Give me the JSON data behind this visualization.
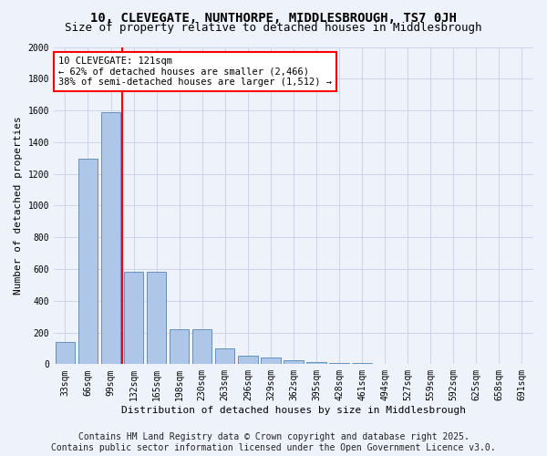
{
  "title_line1": "10, CLEVEGATE, NUNTHORPE, MIDDLESBROUGH, TS7 0JH",
  "title_line2": "Size of property relative to detached houses in Middlesbrough",
  "xlabel": "Distribution of detached houses by size in Middlesbrough",
  "ylabel": "Number of detached properties",
  "categories": [
    "33sqm",
    "66sqm",
    "99sqm",
    "132sqm",
    "165sqm",
    "198sqm",
    "230sqm",
    "263sqm",
    "296sqm",
    "329sqm",
    "362sqm",
    "395sqm",
    "428sqm",
    "461sqm",
    "494sqm",
    "527sqm",
    "559sqm",
    "592sqm",
    "625sqm",
    "658sqm",
    "691sqm"
  ],
  "values": [
    140,
    1295,
    1590,
    580,
    580,
    220,
    220,
    100,
    55,
    45,
    25,
    15,
    10,
    5,
    2,
    1,
    1,
    0,
    0,
    0,
    0
  ],
  "bar_color": "#aec6e8",
  "bar_edge_color": "#5585b5",
  "vline_color": "red",
  "annotation_line1": "10 CLEVEGATE: 121sqm",
  "annotation_line2": "← 62% of detached houses are smaller (2,466)",
  "annotation_line3": "38% of semi-detached houses are larger (1,512) →",
  "annotation_box_color": "white",
  "annotation_box_edgecolor": "red",
  "ylim": [
    0,
    2000
  ],
  "yticks": [
    0,
    200,
    400,
    600,
    800,
    1000,
    1200,
    1400,
    1600,
    1800,
    2000
  ],
  "background_color": "#eef2fb",
  "grid_color": "#c8d0e8",
  "footer_line1": "Contains HM Land Registry data © Crown copyright and database right 2025.",
  "footer_line2": "Contains public sector information licensed under the Open Government Licence v3.0.",
  "title_fontsize": 10,
  "subtitle_fontsize": 9,
  "footer_fontsize": 7,
  "ylabel_fontsize": 8,
  "xlabel_fontsize": 8,
  "tick_fontsize": 7,
  "annotation_fontsize": 7.5
}
